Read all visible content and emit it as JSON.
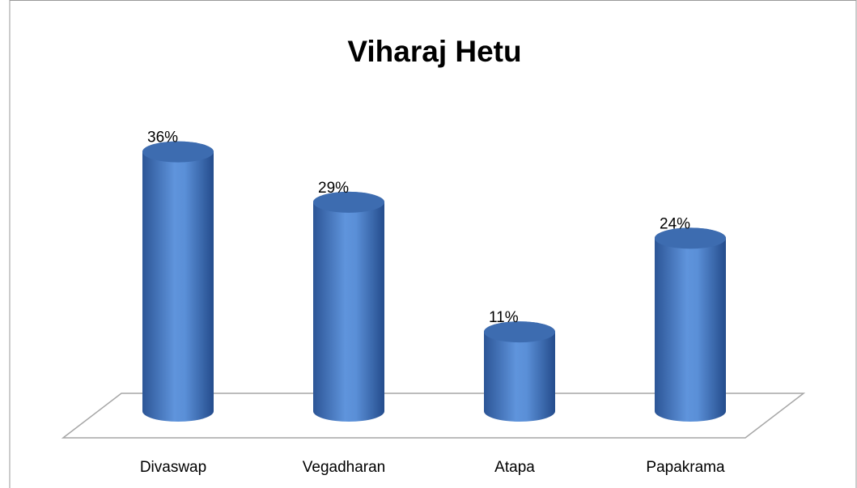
{
  "chart_data": {
    "type": "bar3d",
    "title": "Viharaj Hetu",
    "categories": [
      "Divaswap",
      "Vegadharan",
      "Atapa",
      "Papakrama"
    ],
    "values": [
      36,
      29,
      11,
      24
    ],
    "value_labels": [
      "36%",
      "29%",
      "11%",
      "24%"
    ],
    "color": "#4f81bd"
  }
}
